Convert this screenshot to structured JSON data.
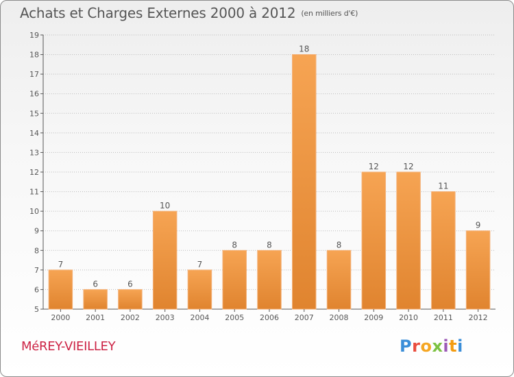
{
  "header": {
    "title": "Achats et Charges Externes 2000 à 2012",
    "subtitle": "(en milliers d'€)"
  },
  "footer": {
    "commune": "MéREY-VIEILLEY",
    "logo_text": "Proxiti",
    "logo_colors": [
      "#3b8ed8",
      "#e94b3c",
      "#f5a623",
      "#7cc242",
      "#9b59b6",
      "#f39c12",
      "#3b8ed8"
    ]
  },
  "colors": {
    "bar_light": "#f6a453",
    "bar_dark": "#e0842f",
    "axis": "#555555",
    "grid": "#bbbbbb"
  },
  "chart_data": {
    "type": "bar",
    "title": "Achats et Charges Externes 2000 à 2012",
    "subtitle": "(en milliers d'€)",
    "categories": [
      "2000",
      "2001",
      "2002",
      "2003",
      "2004",
      "2005",
      "2006",
      "2007",
      "2008",
      "2009",
      "2010",
      "2011",
      "2012"
    ],
    "values": [
      7,
      6,
      6,
      10,
      7,
      8,
      8,
      18,
      8,
      12,
      12,
      11,
      9
    ],
    "ylim": [
      5,
      19
    ],
    "yticks": [
      5,
      6,
      7,
      8,
      9,
      10,
      11,
      12,
      13,
      14,
      15,
      16,
      17,
      18,
      19
    ],
    "grid": true,
    "legend": "none"
  }
}
